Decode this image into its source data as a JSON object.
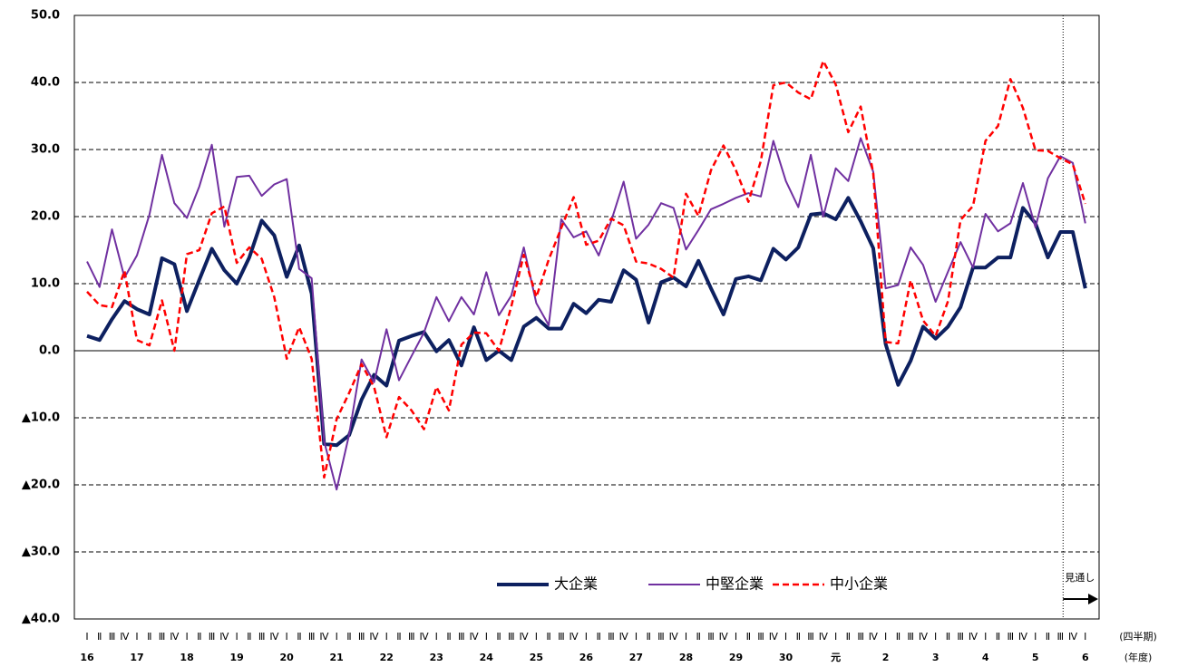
{
  "chart_data": {
    "type": "line",
    "categories": [
      "Ⅰ",
      "Ⅱ",
      "Ⅲ",
      "Ⅳ",
      "Ⅰ",
      "Ⅱ",
      "Ⅲ",
      "Ⅳ",
      "Ⅰ",
      "Ⅱ",
      "Ⅲ",
      "Ⅳ",
      "Ⅰ",
      "Ⅱ",
      "Ⅲ",
      "Ⅳ",
      "Ⅰ",
      "Ⅱ",
      "Ⅲ",
      "Ⅳ",
      "Ⅰ",
      "Ⅱ",
      "Ⅲ",
      "Ⅳ",
      "Ⅰ",
      "Ⅱ",
      "Ⅲ",
      "Ⅳ",
      "Ⅰ",
      "Ⅱ",
      "Ⅲ",
      "Ⅳ",
      "Ⅰ",
      "Ⅱ",
      "Ⅲ",
      "Ⅳ",
      "Ⅰ",
      "Ⅱ",
      "Ⅲ",
      "Ⅳ",
      "Ⅰ",
      "Ⅱ",
      "Ⅲ",
      "Ⅳ",
      "Ⅰ",
      "Ⅱ",
      "Ⅲ",
      "Ⅳ",
      "Ⅰ",
      "Ⅱ",
      "Ⅲ",
      "Ⅳ",
      "Ⅰ",
      "Ⅱ",
      "Ⅲ",
      "Ⅳ",
      "Ⅰ",
      "Ⅱ",
      "Ⅲ",
      "Ⅳ",
      "Ⅰ",
      "Ⅱ",
      "Ⅲ",
      "Ⅳ",
      "Ⅰ",
      "Ⅱ",
      "Ⅲ",
      "Ⅳ",
      "Ⅰ",
      "Ⅱ",
      "Ⅲ",
      "Ⅳ",
      "Ⅰ",
      "Ⅱ",
      "Ⅲ",
      "Ⅳ",
      "Ⅰ",
      "Ⅱ",
      "Ⅲ",
      "Ⅳ",
      "Ⅰ"
    ],
    "year_labels": [
      "16",
      "17",
      "18",
      "19",
      "20",
      "21",
      "22",
      "23",
      "24",
      "25",
      "26",
      "27",
      "28",
      "29",
      "30",
      "元",
      "2",
      "3",
      "4",
      "5",
      "6"
    ],
    "x_label": "(四半期)",
    "x_label2": "(年度)",
    "annotation": "見通し",
    "series": [
      {
        "name": "大企業",
        "color": "#0d2060",
        "line_style": "solid",
        "values": [
          2.2,
          1.6,
          4.7,
          7.4,
          6.2,
          5.4,
          13.8,
          12.9,
          5.9,
          10.6,
          15.2,
          12.0,
          10.0,
          13.9,
          19.4,
          17.2,
          11.0,
          15.7,
          8.5,
          -13.9,
          -14.1,
          -12.6,
          -7.3,
          -3.6,
          -5.2,
          1.5,
          2.2,
          2.8,
          -0.1,
          1.6,
          -2.2,
          3.5,
          -1.4,
          0.0,
          -1.4,
          3.6,
          4.9,
          3.3,
          3.3,
          7.0,
          5.6,
          7.6,
          7.3,
          12.0,
          10.6,
          4.2,
          10.2,
          10.9,
          9.6,
          13.4,
          9.3,
          5.4,
          10.7,
          11.1,
          10.5,
          15.2,
          13.6,
          15.4,
          20.3,
          20.5,
          19.6,
          22.8,
          19.3,
          15.3,
          1.0,
          -5.1,
          -1.5,
          3.6,
          1.8,
          3.6,
          6.5,
          12.4,
          12.4,
          13.9,
          13.9,
          21.3,
          19.0,
          13.9,
          17.7,
          17.7,
          9.3
        ]
      },
      {
        "name": "中堅企業",
        "color": "#7030a0",
        "line_style": "solid",
        "values": [
          13.3,
          9.5,
          18.1,
          10.9,
          14.2,
          20.3,
          29.2,
          22.0,
          19.8,
          24.5,
          30.7,
          18.5,
          25.9,
          26.1,
          23.1,
          24.8,
          25.6,
          12.2,
          10.8,
          -13.5,
          -20.7,
          -12.5,
          -1.3,
          -4.7,
          3.2,
          -4.4,
          -0.8,
          2.7,
          8.0,
          4.4,
          8.0,
          5.4,
          11.7,
          5.3,
          8.2,
          15.4,
          7.1,
          3.8,
          19.6,
          16.9,
          17.8,
          14.2,
          19.3,
          25.2,
          16.7,
          18.8,
          22.0,
          21.3,
          15.1,
          18.0,
          21.1,
          21.9,
          22.8,
          23.5,
          23.0,
          31.3,
          25.3,
          21.4,
          29.2,
          20.0,
          27.2,
          25.3,
          31.7,
          26.7,
          9.3,
          9.8,
          15.4,
          12.8,
          7.3,
          11.8,
          16.2,
          12.4,
          20.4,
          17.8,
          19.0,
          25.0,
          18.4,
          25.7,
          29.0,
          28.0,
          19.0
        ]
      },
      {
        "name": "中小企業",
        "color": "#ff0000",
        "line_style": "dashed",
        "values": [
          8.8,
          6.8,
          6.5,
          11.9,
          1.6,
          0.8,
          7.5,
          0.0,
          14.4,
          15.0,
          20.5,
          21.5,
          13.1,
          15.4,
          13.7,
          8.0,
          -1.2,
          3.5,
          -1.2,
          -18.9,
          -10.2,
          -6.3,
          -2.0,
          -5.4,
          -12.9,
          -6.9,
          -8.9,
          -11.7,
          -5.4,
          -8.9,
          0.9,
          2.7,
          2.6,
          0.0,
          6.6,
          14.3,
          8.0,
          13.6,
          18.3,
          22.9,
          15.8,
          16.4,
          19.7,
          18.7,
          13.3,
          13.0,
          12.2,
          10.9,
          23.4,
          20.1,
          26.9,
          30.6,
          26.9,
          22.2,
          28.3,
          39.6,
          40.0,
          38.5,
          37.5,
          43.2,
          39.7,
          32.6,
          36.4,
          26.5,
          1.3,
          1.1,
          10.5,
          4.5,
          2.2,
          7.4,
          19.5,
          21.6,
          31.3,
          33.5,
          40.5,
          36.2,
          29.9,
          29.8,
          28.7,
          27.8,
          21.9
        ]
      }
    ],
    "ylim": [
      -40,
      50
    ],
    "yticks": [
      {
        "value": 50,
        "label": "50.0"
      },
      {
        "value": 40,
        "label": "40.0"
      },
      {
        "value": 30,
        "label": "30.0"
      },
      {
        "value": 20,
        "label": "20.0"
      },
      {
        "value": 10,
        "label": "10.0"
      },
      {
        "value": 0,
        "label": "0.0"
      },
      {
        "value": -10,
        "label": "▲10.0"
      },
      {
        "value": -20,
        "label": "▲20.0"
      },
      {
        "value": -30,
        "label": "▲30.0"
      },
      {
        "value": -40,
        "label": "▲40.0"
      }
    ],
    "grid": true
  }
}
